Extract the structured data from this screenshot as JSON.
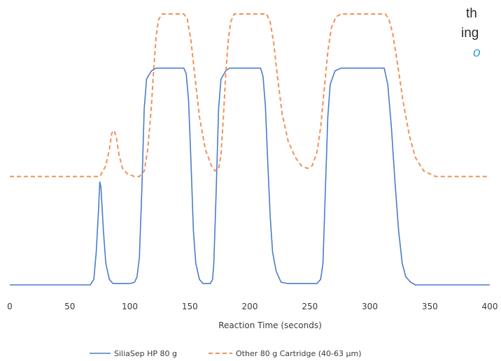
{
  "text_fragments": {
    "line1": "th",
    "line2": "ing",
    "line3": "o"
  },
  "chart_data": {
    "type": "line",
    "xlabel": "Reaction Time (seconds)",
    "ylabel": "",
    "xlim": [
      0,
      400
    ],
    "ylim": [
      0,
      100
    ],
    "xticks": [
      0,
      50,
      100,
      150,
      200,
      250,
      300,
      350,
      400
    ],
    "yticks_visible": false,
    "grid": false,
    "legend_position": "bottom",
    "series": [
      {
        "name": "SiliaSep HP 80 g",
        "color": "#4a7cc9",
        "style": "solid",
        "points": [
          [
            0,
            0
          ],
          [
            67,
            0
          ],
          [
            70,
            2
          ],
          [
            72,
            12
          ],
          [
            74,
            28
          ],
          [
            75,
            38
          ],
          [
            76,
            36
          ],
          [
            78,
            20
          ],
          [
            80,
            8
          ],
          [
            83,
            2
          ],
          [
            86,
            0.5
          ],
          [
            100,
            0.5
          ],
          [
            104,
            1
          ],
          [
            106,
            3
          ],
          [
            108,
            10
          ],
          [
            110,
            35
          ],
          [
            112,
            65
          ],
          [
            114,
            76
          ],
          [
            118,
            79
          ],
          [
            122,
            80
          ],
          [
            145,
            80
          ],
          [
            147,
            78
          ],
          [
            149,
            68
          ],
          [
            151,
            45
          ],
          [
            153,
            20
          ],
          [
            155,
            8
          ],
          [
            158,
            2
          ],
          [
            161,
            0.5
          ],
          [
            167,
            0.5
          ],
          [
            169,
            2
          ],
          [
            170,
            8
          ],
          [
            172,
            35
          ],
          [
            174,
            65
          ],
          [
            176,
            76
          ],
          [
            180,
            79
          ],
          [
            183,
            80
          ],
          [
            209,
            80
          ],
          [
            211,
            77
          ],
          [
            213,
            66
          ],
          [
            215,
            45
          ],
          [
            217,
            25
          ],
          [
            219,
            12
          ],
          [
            222,
            5
          ],
          [
            226,
            1
          ],
          [
            232,
            0.5
          ],
          [
            256,
            0.5
          ],
          [
            259,
            2
          ],
          [
            261,
            8
          ],
          [
            263,
            35
          ],
          [
            265,
            62
          ],
          [
            267,
            74
          ],
          [
            271,
            79
          ],
          [
            276,
            80
          ],
          [
            312,
            80
          ],
          [
            315,
            74
          ],
          [
            318,
            58
          ],
          [
            321,
            38
          ],
          [
            324,
            20
          ],
          [
            327,
            8
          ],
          [
            330,
            3
          ],
          [
            334,
            1
          ],
          [
            338,
            0
          ],
          [
            400,
            0
          ]
        ]
      },
      {
        "name": "Other 80 g Cartridge (40-63 µm)",
        "color": "#f0925a",
        "style": "dashed",
        "points": [
          [
            0,
            40
          ],
          [
            75,
            40
          ],
          [
            80,
            44
          ],
          [
            83,
            50
          ],
          [
            85,
            56
          ],
          [
            87,
            57
          ],
          [
            89,
            54
          ],
          [
            91,
            48
          ],
          [
            94,
            43
          ],
          [
            98,
            41
          ],
          [
            104,
            40
          ],
          [
            108,
            40
          ],
          [
            112,
            42
          ],
          [
            115,
            50
          ],
          [
            118,
            66
          ],
          [
            120,
            80
          ],
          [
            122,
            92
          ],
          [
            124,
            98
          ],
          [
            127,
            100
          ],
          [
            145,
            100
          ],
          [
            148,
            98
          ],
          [
            151,
            90
          ],
          [
            154,
            78
          ],
          [
            158,
            62
          ],
          [
            163,
            50
          ],
          [
            168,
            44
          ],
          [
            171,
            42
          ],
          [
            174,
            43
          ],
          [
            176,
            48
          ],
          [
            178,
            62
          ],
          [
            180,
            78
          ],
          [
            182,
            90
          ],
          [
            184,
            97
          ],
          [
            187,
            100
          ],
          [
            214,
            100
          ],
          [
            217,
            97
          ],
          [
            220,
            89
          ],
          [
            223,
            77
          ],
          [
            227,
            63
          ],
          [
            232,
            53
          ],
          [
            238,
            47
          ],
          [
            243,
            44
          ],
          [
            248,
            43
          ],
          [
            252,
            44
          ],
          [
            256,
            49
          ],
          [
            259,
            58
          ],
          [
            262,
            72
          ],
          [
            265,
            86
          ],
          [
            268,
            95
          ],
          [
            272,
            99
          ],
          [
            276,
            100
          ],
          [
            313,
            100
          ],
          [
            316,
            98
          ],
          [
            319,
            93
          ],
          [
            323,
            82
          ],
          [
            328,
            67
          ],
          [
            333,
            55
          ],
          [
            338,
            47
          ],
          [
            345,
            42
          ],
          [
            355,
            40
          ],
          [
            400,
            40
          ]
        ]
      }
    ]
  }
}
